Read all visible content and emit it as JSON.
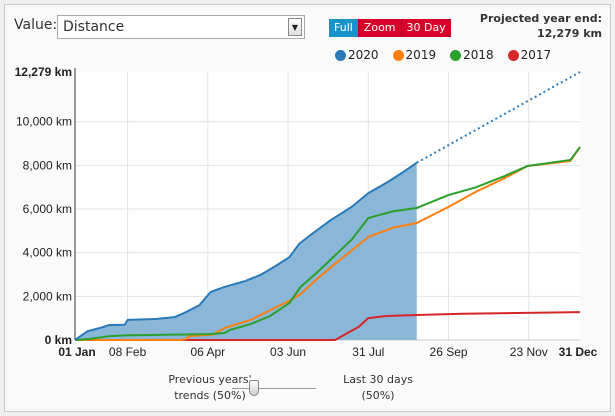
{
  "controls": {
    "value_label": "Value:",
    "value_selected": "Distance",
    "view_buttons": [
      "Full",
      "Zoom",
      "30 Day"
    ],
    "projected_label": "Projected year end:",
    "projected_value": "12,279 km"
  },
  "slider": {
    "left_label_1": "Previous years'",
    "left_label_2": "trends (50%)",
    "right_label_1": "Last 30 days",
    "right_label_2": "(50%)",
    "value_percent": 50
  },
  "chart_data": {
    "type": "line",
    "title": "",
    "xlabel": "",
    "ylabel": "",
    "x_unit": "day of year",
    "xlim": [
      0,
      365
    ],
    "ylim": [
      0,
      12279
    ],
    "x_ticks": [
      {
        "day": 0,
        "label": "01 Jan",
        "bold": true
      },
      {
        "day": 38,
        "label": "08 Feb"
      },
      {
        "day": 96,
        "label": "06 Apr"
      },
      {
        "day": 154,
        "label": "03 Jun"
      },
      {
        "day": 212,
        "label": "31 Jul"
      },
      {
        "day": 270,
        "label": "26 Sep"
      },
      {
        "day": 328,
        "label": "23 Nov"
      },
      {
        "day": 365,
        "label": "31 Dec",
        "bold": true
      }
    ],
    "y_ticks": [
      {
        "v": 0,
        "label": "0 km",
        "bold": true
      },
      {
        "v": 2000,
        "label": "2,000 km"
      },
      {
        "v": 4000,
        "label": "4,000 km"
      },
      {
        "v": 6000,
        "label": "6,000 km"
      },
      {
        "v": 8000,
        "label": "8,000 km"
      },
      {
        "v": 10000,
        "label": "10,000 km"
      },
      {
        "v": 12279,
        "label": "12,279 km",
        "bold": true
      }
    ],
    "grid": true,
    "legend_position": "top-right",
    "series": [
      {
        "name": "2020",
        "color": "#2a7ab8",
        "fill": true,
        "points": [
          [
            0,
            0
          ],
          [
            4,
            180
          ],
          [
            9,
            400
          ],
          [
            18,
            550
          ],
          [
            25,
            690
          ],
          [
            36,
            700
          ],
          [
            38,
            920
          ],
          [
            58,
            960
          ],
          [
            72,
            1050
          ],
          [
            79,
            1240
          ],
          [
            90,
            1600
          ],
          [
            98,
            2200
          ],
          [
            108,
            2430
          ],
          [
            123,
            2700
          ],
          [
            134,
            2980
          ],
          [
            145,
            3390
          ],
          [
            155,
            3800
          ],
          [
            162,
            4400
          ],
          [
            170,
            4800
          ],
          [
            185,
            5500
          ],
          [
            200,
            6100
          ],
          [
            212,
            6730
          ],
          [
            225,
            7200
          ],
          [
            235,
            7600
          ],
          [
            247,
            8120
          ]
        ],
        "projection": [
          [
            247,
            8120
          ],
          [
            365,
            12279
          ]
        ]
      },
      {
        "name": "2019",
        "color": "#ff7f0e",
        "points": [
          [
            0,
            0
          ],
          [
            76,
            0
          ],
          [
            80,
            40
          ],
          [
            83,
            180
          ],
          [
            100,
            250
          ],
          [
            108,
            550
          ],
          [
            127,
            920
          ],
          [
            141,
            1370
          ],
          [
            155,
            1800
          ],
          [
            163,
            2100
          ],
          [
            175,
            2800
          ],
          [
            190,
            3600
          ],
          [
            200,
            4100
          ],
          [
            212,
            4720
          ],
          [
            230,
            5150
          ],
          [
            247,
            5360
          ],
          [
            270,
            6100
          ],
          [
            290,
            6800
          ],
          [
            310,
            7400
          ],
          [
            327,
            7970
          ],
          [
            358,
            8200
          ],
          [
            365,
            8840
          ]
        ]
      },
      {
        "name": "2018",
        "color": "#2ca02c",
        "points": [
          [
            0,
            0
          ],
          [
            11,
            50
          ],
          [
            25,
            180
          ],
          [
            40,
            220
          ],
          [
            54,
            230
          ],
          [
            97,
            270
          ],
          [
            108,
            320
          ],
          [
            112,
            460
          ],
          [
            127,
            730
          ],
          [
            141,
            1100
          ],
          [
            155,
            1700
          ],
          [
            163,
            2430
          ],
          [
            175,
            3100
          ],
          [
            190,
            4000
          ],
          [
            200,
            4600
          ],
          [
            212,
            5590
          ],
          [
            230,
            5900
          ],
          [
            247,
            6050
          ],
          [
            270,
            6640
          ],
          [
            290,
            7000
          ],
          [
            310,
            7500
          ],
          [
            327,
            7970
          ],
          [
            358,
            8250
          ],
          [
            365,
            8840
          ]
        ]
      },
      {
        "name": "2017",
        "color": "#d62728",
        "points": [
          [
            0,
            0
          ],
          [
            188,
            0
          ],
          [
            195,
            250
          ],
          [
            205,
            600
          ],
          [
            212,
            1000
          ],
          [
            225,
            1100
          ],
          [
            250,
            1150
          ],
          [
            280,
            1200
          ],
          [
            365,
            1280
          ]
        ]
      }
    ]
  }
}
